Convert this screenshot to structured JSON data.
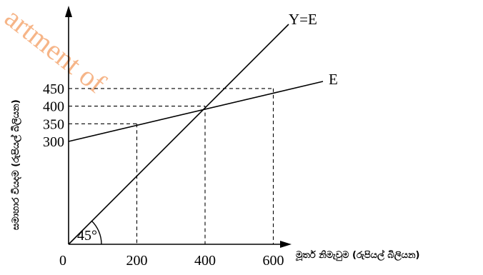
{
  "chart_data": {
    "type": "line",
    "x_ticks": [
      0,
      200,
      400,
      600
    ],
    "y_ticks": [
      300,
      350,
      400,
      450
    ],
    "x_tick_labels": [
      "0",
      "200",
      "400",
      "600"
    ],
    "y_tick_labels": [
      "300",
      "350",
      "400",
      "450"
    ],
    "xlabel": "මූර්ත නිමැවුම (රුපියල් බිලියන)",
    "ylabel": "සමාහාර වියදම (රුපියල් බිලියන)",
    "series": [
      {
        "name": "Y=E",
        "x": [
          0,
          640
        ],
        "y": [
          0,
          640
        ]
      },
      {
        "name": "E",
        "x": [
          0,
          200,
          400,
          600,
          720
        ],
        "y": [
          300,
          350,
          400,
          450,
          480
        ]
      }
    ],
    "guides": [
      {
        "x": 200,
        "y": 350
      },
      {
        "x": 400,
        "y": 400
      },
      {
        "x": 600,
        "y": 450
      }
    ],
    "angle_label": "45°",
    "watermark": "artment of",
    "grid": false
  }
}
